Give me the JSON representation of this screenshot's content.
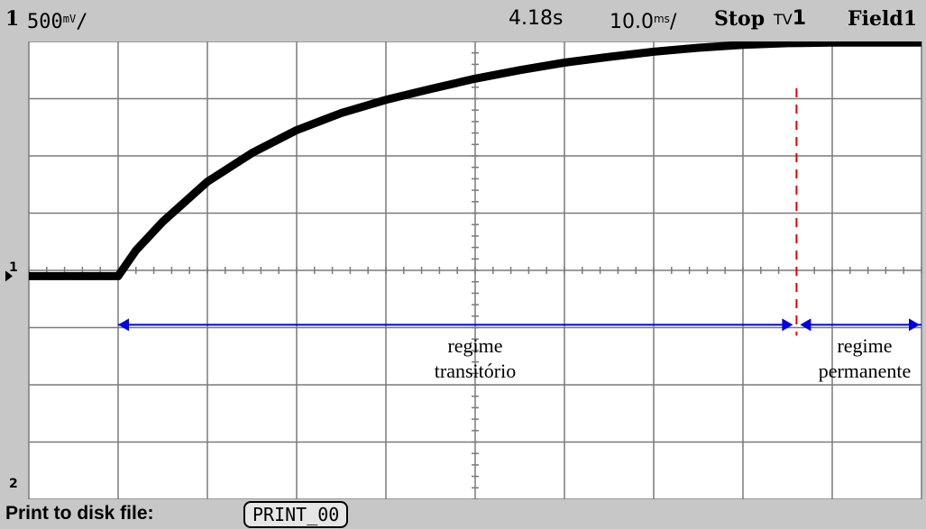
{
  "header": {
    "channel": "1",
    "volts_per_div_value": "500",
    "volts_per_div_unit": "mV",
    "trigger_time": "4.18s",
    "time_per_div_value": "10.0",
    "time_per_div_unit": "ms",
    "run_state": "Stop",
    "trigger_mode": "TV",
    "trigger_source": "1",
    "field": "Field1"
  },
  "footer": {
    "print_label": "Print to disk file:",
    "file_name": "PRINT_00"
  },
  "markers": {
    "ground_marker": "1",
    "channel2_marker": "2"
  },
  "annotations": {
    "transient_line1": "regime",
    "transient_line2": "transitório",
    "steady_line1": "regime",
    "steady_line2": "permanente"
  },
  "colors": {
    "screen_background": "#ffffff",
    "bezel": "#c7c7c7",
    "grid": "#7a7a7a",
    "trace": "#000000",
    "region_arrow": "#0000e0",
    "steady_state_marker": "#e00000"
  },
  "chart_data": {
    "type": "line",
    "title": "",
    "xlabel": "",
    "ylabel": "",
    "x_units": "divisions",
    "y_units": "divisions",
    "xlim": [
      0,
      10
    ],
    "ylim": [
      -4,
      4
    ],
    "grid": true,
    "x_divisions": 10,
    "y_divisions": 8,
    "series": [
      {
        "x": [
          0,
          0.5,
          1.0,
          1.2,
          1.5,
          2.0,
          2.5,
          3.0,
          3.5,
          4.0,
          4.5,
          5.0,
          5.5,
          6.0,
          6.5,
          7.0,
          7.5,
          8.0,
          8.5,
          9.0,
          9.5,
          10.0
        ],
        "y": [
          -0.1,
          -0.1,
          -0.1,
          0.35,
          0.85,
          1.55,
          2.05,
          2.45,
          2.75,
          2.98,
          3.17,
          3.35,
          3.5,
          3.63,
          3.73,
          3.82,
          3.89,
          3.94,
          3.97,
          3.98,
          3.98,
          3.98
        ]
      }
    ],
    "steady_state_marker_x": 8.6,
    "region_arrow_y": -0.95,
    "transient_region_x": [
      1.0,
      8.6
    ],
    "steady_region_x": [
      8.6,
      10.0
    ]
  }
}
